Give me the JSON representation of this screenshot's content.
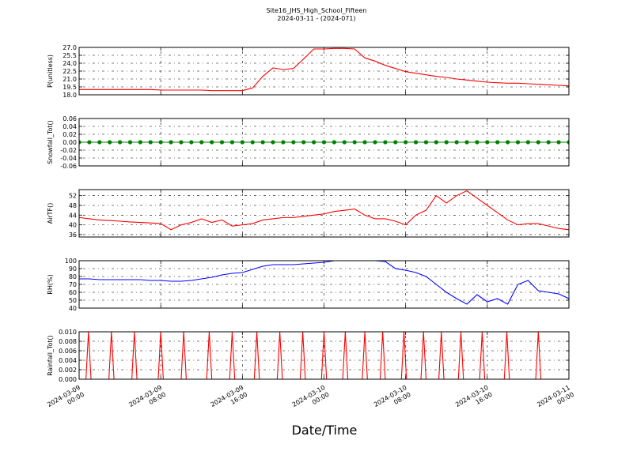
{
  "title": "Site16_JHS_High_School_Fifteen",
  "subtitle": "2024-03-11 - (2024-071)",
  "x_label": "Date/Time",
  "chart_data": [
    {
      "type": "line",
      "ylabel": "P(unitless)",
      "color": "#ff0000",
      "grid": true,
      "xlim": [
        "2024-03-09 00:00",
        "2024-03-11 00:00"
      ],
      "ylim": [
        18,
        27
      ],
      "yticks": [
        {
          "value": 18,
          "label": "18.0"
        },
        19.5,
        {
          "value": 21,
          "label": "21.0"
        },
        22.5,
        {
          "value": 24,
          "label": "24.0"
        },
        25.5,
        {
          "value": 27,
          "label": "27.0"
        }
      ],
      "x": [
        "2024-03-09 00:00",
        "2024-03-09 01:00",
        "2024-03-09 02:00",
        "2024-03-09 03:00",
        "2024-03-09 04:00",
        "2024-03-09 05:00",
        "2024-03-09 06:00",
        "2024-03-09 07:00",
        "2024-03-09 08:00",
        "2024-03-09 09:00",
        "2024-03-09 10:00",
        "2024-03-09 11:00",
        "2024-03-09 12:00",
        "2024-03-09 13:00",
        "2024-03-09 14:00",
        "2024-03-09 15:00",
        "2024-03-09 16:00",
        "2024-03-09 17:00",
        "2024-03-09 18:00",
        "2024-03-09 19:00",
        "2024-03-09 20:00",
        "2024-03-09 21:00",
        "2024-03-09 22:00",
        "2024-03-09 23:00",
        "2024-03-10 00:00",
        "2024-03-10 01:00",
        "2024-03-10 02:00",
        "2024-03-10 03:00",
        "2024-03-10 04:00",
        "2024-03-10 05:00",
        "2024-03-10 06:00",
        "2024-03-10 07:00",
        "2024-03-10 08:00",
        "2024-03-10 09:00",
        "2024-03-10 10:00",
        "2024-03-10 11:00",
        "2024-03-10 12:00",
        "2024-03-10 13:00",
        "2024-03-10 14:00",
        "2024-03-10 15:00",
        "2024-03-10 16:00",
        "2024-03-10 17:00",
        "2024-03-10 18:00",
        "2024-03-10 19:00",
        "2024-03-10 20:00",
        "2024-03-10 21:00",
        "2024-03-10 22:00",
        "2024-03-10 23:00",
        "2024-03-11 00:00"
      ],
      "values": [
        19.0,
        19.0,
        19.0,
        19.0,
        19.0,
        19.0,
        19.0,
        19.0,
        18.9,
        18.9,
        18.9,
        18.9,
        18.9,
        18.8,
        18.8,
        18.8,
        18.8,
        19.3,
        21.5,
        23.1,
        22.8,
        23.0,
        24.8,
        26.7,
        26.7,
        26.8,
        26.8,
        26.7,
        25.0,
        24.4,
        23.6,
        23.0,
        22.4,
        22.1,
        21.8,
        21.5,
        21.3,
        21.0,
        20.8,
        20.6,
        20.4,
        20.3,
        20.2,
        20.2,
        20.1,
        20.0,
        19.9,
        19.8,
        19.7
      ]
    },
    {
      "type": "line",
      "ylabel": "Snowfall_Tot()",
      "color": "#008000",
      "marker": true,
      "grid": true,
      "xlim": [
        "2024-03-09 00:00",
        "2024-03-11 00:00"
      ],
      "ylim": [
        -0.06,
        0.06
      ],
      "yticks": [
        -0.06,
        -0.04,
        -0.02,
        {
          "value": 0,
          "label": "0.00"
        },
        0.02,
        0.04,
        0.06
      ],
      "x": [
        "2024-03-09 00:00",
        "2024-03-09 01:00",
        "2024-03-09 02:00",
        "2024-03-09 03:00",
        "2024-03-09 04:00",
        "2024-03-09 05:00",
        "2024-03-09 06:00",
        "2024-03-09 07:00",
        "2024-03-09 08:00",
        "2024-03-09 09:00",
        "2024-03-09 10:00",
        "2024-03-09 11:00",
        "2024-03-09 12:00",
        "2024-03-09 13:00",
        "2024-03-09 14:00",
        "2024-03-09 15:00",
        "2024-03-09 16:00",
        "2024-03-09 17:00",
        "2024-03-09 18:00",
        "2024-03-09 19:00",
        "2024-03-09 20:00",
        "2024-03-09 21:00",
        "2024-03-09 22:00",
        "2024-03-09 23:00",
        "2024-03-10 00:00",
        "2024-03-10 01:00",
        "2024-03-10 02:00",
        "2024-03-10 03:00",
        "2024-03-10 04:00",
        "2024-03-10 05:00",
        "2024-03-10 06:00",
        "2024-03-10 07:00",
        "2024-03-10 08:00",
        "2024-03-10 09:00",
        "2024-03-10 10:00",
        "2024-03-10 11:00",
        "2024-03-10 12:00",
        "2024-03-10 13:00",
        "2024-03-10 14:00",
        "2024-03-10 15:00",
        "2024-03-10 16:00",
        "2024-03-10 17:00",
        "2024-03-10 18:00",
        "2024-03-10 19:00",
        "2024-03-10 20:00",
        "2024-03-10 21:00",
        "2024-03-10 22:00",
        "2024-03-10 23:00",
        "2024-03-11 00:00"
      ],
      "values": [
        0,
        0,
        0,
        0,
        0,
        0,
        0,
        0,
        0,
        0,
        0,
        0,
        0,
        0,
        0,
        0,
        0,
        0,
        0,
        0,
        0,
        0,
        0,
        0,
        0,
        0,
        0,
        0,
        0,
        0,
        0,
        0,
        0,
        0,
        0,
        0,
        0,
        0,
        0,
        0,
        0,
        0,
        0,
        0,
        0,
        0,
        0,
        0,
        0
      ]
    },
    {
      "type": "line",
      "ylabel": "AirTF()",
      "color": "#ff0000",
      "grid": true,
      "xlim": [
        "2024-03-09 00:00",
        "2024-03-11 00:00"
      ],
      "ylim": [
        35,
        54.5
      ],
      "yticks": [
        36,
        40,
        44,
        48,
        52
      ],
      "x": [
        "2024-03-09 00:00",
        "2024-03-09 01:00",
        "2024-03-09 02:00",
        "2024-03-09 03:00",
        "2024-03-09 04:00",
        "2024-03-09 05:00",
        "2024-03-09 06:00",
        "2024-03-09 07:00",
        "2024-03-09 08:00",
        "2024-03-09 09:00",
        "2024-03-09 10:00",
        "2024-03-09 11:00",
        "2024-03-09 12:00",
        "2024-03-09 13:00",
        "2024-03-09 14:00",
        "2024-03-09 15:00",
        "2024-03-09 16:00",
        "2024-03-09 17:00",
        "2024-03-09 18:00",
        "2024-03-09 19:00",
        "2024-03-09 20:00",
        "2024-03-09 21:00",
        "2024-03-09 22:00",
        "2024-03-09 23:00",
        "2024-03-10 00:00",
        "2024-03-10 01:00",
        "2024-03-10 02:00",
        "2024-03-10 03:00",
        "2024-03-10 04:00",
        "2024-03-10 05:00",
        "2024-03-10 06:00",
        "2024-03-10 07:00",
        "2024-03-10 08:00",
        "2024-03-10 09:00",
        "2024-03-10 10:00",
        "2024-03-10 11:00",
        "2024-03-10 12:00",
        "2024-03-10 13:00",
        "2024-03-10 14:00",
        "2024-03-10 15:00",
        "2024-03-10 16:00",
        "2024-03-10 17:00",
        "2024-03-10 18:00",
        "2024-03-10 19:00",
        "2024-03-10 20:00",
        "2024-03-10 21:00",
        "2024-03-10 22:00",
        "2024-03-10 23:00",
        "2024-03-11 00:00"
      ],
      "values": [
        43,
        42.5,
        42,
        41.8,
        41.5,
        41.2,
        41,
        40.8,
        40.5,
        38,
        40,
        41,
        42.5,
        41,
        42,
        39.5,
        40,
        40.5,
        42,
        42.5,
        43,
        43,
        43.5,
        44,
        44.5,
        45.5,
        46,
        46.5,
        44,
        42.5,
        42.5,
        41.5,
        40,
        44,
        46,
        52,
        49,
        52,
        54,
        51,
        48,
        45,
        42,
        40,
        40.5,
        40.5,
        39.5,
        38.5,
        38
      ]
    },
    {
      "type": "line",
      "ylabel": "RH(%)",
      "color": "#0000ff",
      "grid": true,
      "xlim": [
        "2024-03-09 00:00",
        "2024-03-11 00:00"
      ],
      "ylim": [
        40,
        100
      ],
      "yticks": [
        40,
        50,
        60,
        70,
        80,
        90,
        100
      ],
      "x": [
        "2024-03-09 00:00",
        "2024-03-09 01:00",
        "2024-03-09 02:00",
        "2024-03-09 03:00",
        "2024-03-09 04:00",
        "2024-03-09 05:00",
        "2024-03-09 06:00",
        "2024-03-09 07:00",
        "2024-03-09 08:00",
        "2024-03-09 09:00",
        "2024-03-09 10:00",
        "2024-03-09 11:00",
        "2024-03-09 12:00",
        "2024-03-09 13:00",
        "2024-03-09 14:00",
        "2024-03-09 15:00",
        "2024-03-09 16:00",
        "2024-03-09 17:00",
        "2024-03-09 18:00",
        "2024-03-09 19:00",
        "2024-03-09 20:00",
        "2024-03-09 21:00",
        "2024-03-09 22:00",
        "2024-03-09 23:00",
        "2024-03-10 00:00",
        "2024-03-10 01:00",
        "2024-03-10 02:00",
        "2024-03-10 03:00",
        "2024-03-10 04:00",
        "2024-03-10 05:00",
        "2024-03-10 06:00",
        "2024-03-10 07:00",
        "2024-03-10 08:00",
        "2024-03-10 09:00",
        "2024-03-10 10:00",
        "2024-03-10 11:00",
        "2024-03-10 12:00",
        "2024-03-10 13:00",
        "2024-03-10 14:00",
        "2024-03-10 15:00",
        "2024-03-10 16:00",
        "2024-03-10 17:00",
        "2024-03-10 18:00",
        "2024-03-10 19:00",
        "2024-03-10 20:00",
        "2024-03-10 21:00",
        "2024-03-10 22:00",
        "2024-03-10 23:00",
        "2024-03-11 00:00"
      ],
      "values": [
        77,
        77,
        76,
        76,
        76,
        76,
        76,
        75,
        75,
        74,
        74,
        75,
        77,
        79,
        82,
        84,
        85,
        89,
        93,
        95,
        95,
        95,
        96,
        97,
        98,
        100,
        100,
        100,
        100,
        100,
        99,
        90,
        88,
        85,
        80,
        70,
        60,
        52,
        45,
        57,
        48,
        52,
        45,
        70,
        75,
        62,
        60,
        58,
        52
      ]
    },
    {
      "type": "line",
      "ylabel": "Rainfall_Tot()",
      "color": "#ff0000",
      "grid": true,
      "xlim": [
        "2024-03-09 00:00",
        "2024-03-11 00:00"
      ],
      "ylim": [
        0,
        0.01
      ],
      "yticks": [
        {
          "value": 0,
          "label": "0.000"
        },
        0.002,
        0.004,
        0.006,
        0.008,
        {
          "value": 0.01,
          "label": "0.010"
        }
      ],
      "xticks": [
        "2024-03-09 00:00",
        "2024-03-09 08:00",
        "2024-03-09 16:00",
        "2024-03-10 00:00",
        "2024-03-10 08:00",
        "2024-03-10 16:00",
        "2024-03-11 00:00"
      ],
      "x": [
        "2024-03-09 00:00",
        "2024-03-09 00:40",
        "2024-03-09 00:55",
        "2024-03-09 01:10",
        "2024-03-09 02:55",
        "2024-03-09 03:10",
        "2024-03-09 03:25",
        "2024-03-09 05:10",
        "2024-03-09 05:25",
        "2024-03-09 05:40",
        "2024-03-09 07:45",
        "2024-03-09 08:00",
        "2024-03-09 08:15",
        "2024-03-09 10:00",
        "2024-03-09 10:15",
        "2024-03-09 10:30",
        "2024-03-09 12:30",
        "2024-03-09 12:45",
        "2024-03-09 13:00",
        "2024-03-09 14:45",
        "2024-03-09 15:00",
        "2024-03-09 15:15",
        "2024-03-09 17:10",
        "2024-03-09 17:25",
        "2024-03-09 17:40",
        "2024-03-09 19:25",
        "2024-03-09 19:40",
        "2024-03-09 19:55",
        "2024-03-09 21:40",
        "2024-03-09 21:55",
        "2024-03-09 22:10",
        "2024-03-09 23:45",
        "2024-03-10 00:00",
        "2024-03-10 00:15",
        "2024-03-10 01:50",
        "2024-03-10 02:05",
        "2024-03-10 02:20",
        "2024-03-10 03:45",
        "2024-03-10 04:00",
        "2024-03-10 04:15",
        "2024-03-10 05:30",
        "2024-03-10 05:45",
        "2024-03-10 06:00",
        "2024-03-10 07:35",
        "2024-03-10 07:50",
        "2024-03-10 08:05",
        "2024-03-10 09:30",
        "2024-03-10 09:45",
        "2024-03-10 10:00",
        "2024-03-10 11:15",
        "2024-03-10 11:30",
        "2024-03-10 11:45",
        "2024-03-10 13:10",
        "2024-03-10 13:25",
        "2024-03-10 13:40",
        "2024-03-10 15:15",
        "2024-03-10 15:30",
        "2024-03-10 15:45",
        "2024-03-10 17:40",
        "2024-03-10 17:55",
        "2024-03-10 18:10",
        "2024-03-10 20:45",
        "2024-03-10 21:00",
        "2024-03-10 21:15",
        "2024-03-11 00:00"
      ],
      "values": [
        0,
        0,
        0.01,
        0,
        0,
        0.01,
        0,
        0,
        0.01,
        0,
        0,
        0.01,
        0,
        0,
        0.01,
        0,
        0,
        0.01,
        0,
        0,
        0.01,
        0,
        0,
        0.01,
        0,
        0,
        0.01,
        0,
        0,
        0.01,
        0,
        0,
        0.01,
        0,
        0,
        0.01,
        0,
        0,
        0.01,
        0,
        0,
        0.01,
        0,
        0,
        0.01,
        0,
        0,
        0.01,
        0,
        0,
        0.01,
        0,
        0,
        0.01,
        0,
        0,
        0.01,
        0,
        0,
        0.01,
        0,
        0,
        0.01,
        0,
        0
      ]
    }
  ]
}
